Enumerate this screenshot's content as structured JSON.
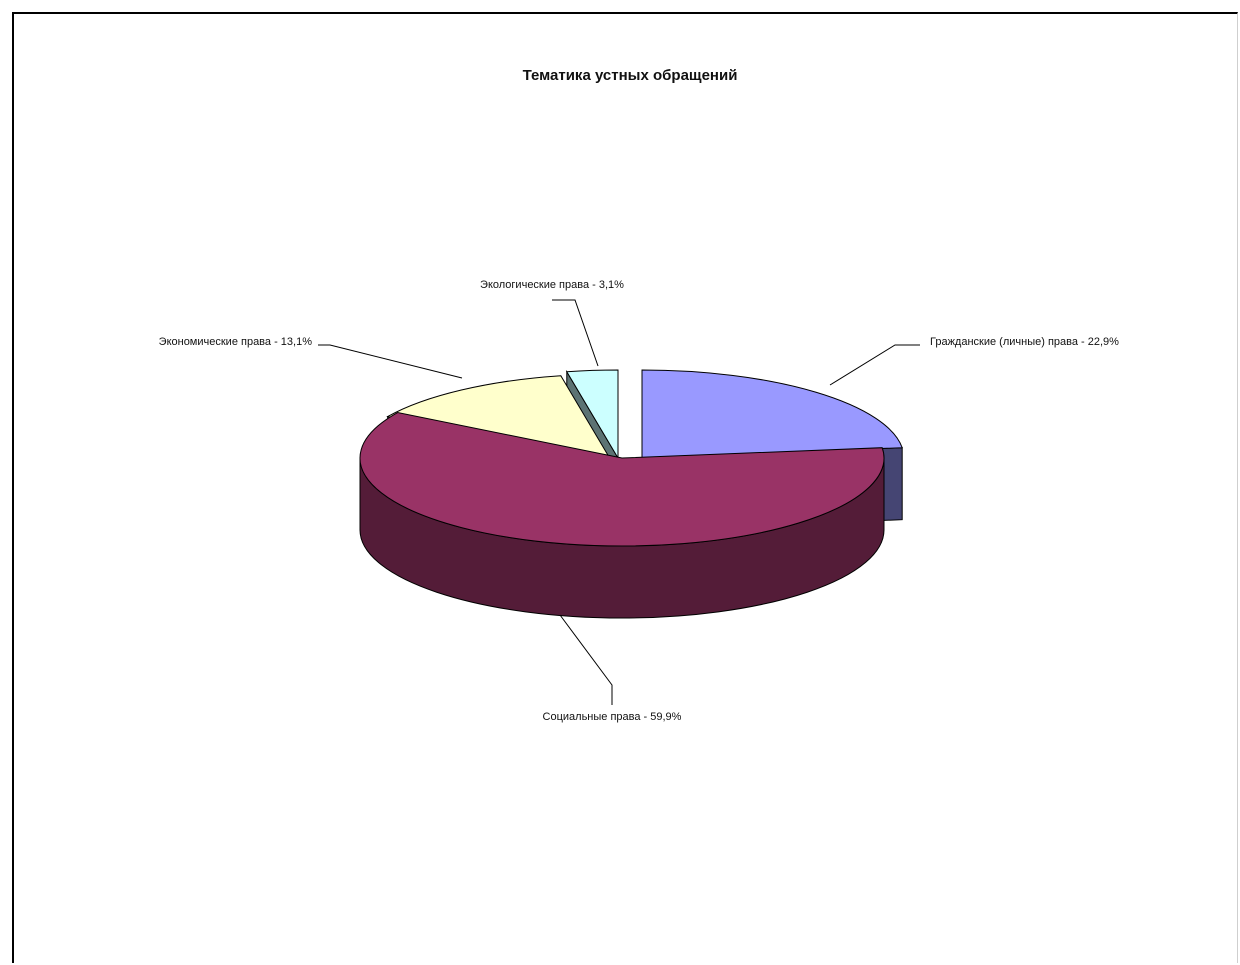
{
  "chart_data": {
    "type": "pie",
    "title": "Тематика устных обращений",
    "three_d": true,
    "exploded": true,
    "slices": [
      {
        "label": "Гражданские (личные) права - 22,9%",
        "value": 22.9,
        "color": "#9999ff"
      },
      {
        "label": "Социальные права - 59,9%",
        "value": 59.9,
        "color": "#993366"
      },
      {
        "label": "Экономические права - 13,1%",
        "value": 13.1,
        "color": "#ffffcc"
      },
      {
        "label": "Экологические права - 3,1%",
        "value": 3.1,
        "color": "#ccffff"
      }
    ]
  }
}
